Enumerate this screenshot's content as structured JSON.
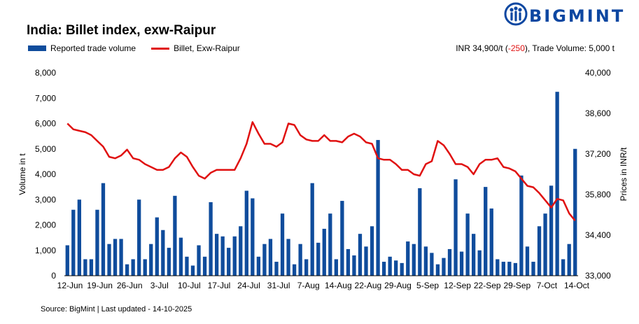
{
  "brand": {
    "name": "BIGMINT",
    "color": "#0d47a1"
  },
  "header": {
    "title": "India: Billet index, exw-Raipur",
    "info_prefix": "INR 34,900/t (",
    "info_change": "-250",
    "info_suffix": "), Trade Volume: 5,000 t"
  },
  "footer": {
    "source": "Source: BigMint | Last updated - 14-10-2025"
  },
  "chart_data": {
    "type": "bar",
    "y_left_label": "Volume in t",
    "y_right_label": "Prices in INR/t",
    "y_left_ticks": [
      "8,000",
      "7,000",
      "6,000",
      "5,000",
      "4,000",
      "3,000",
      "2,000",
      "1,000",
      "0"
    ],
    "y_right_ticks": [
      "40,000",
      "38,600",
      "37,200",
      "35,800",
      "34,400",
      "33,000"
    ],
    "ylim_left": [
      0,
      8000
    ],
    "ylim_right": [
      33000,
      40000
    ],
    "x_ticks": [
      "12-Jun",
      "19-Jun",
      "26-Jun",
      "3-Jul",
      "10-Jul",
      "17-Jul",
      "24-Jul",
      "31-Jul",
      "7-Aug",
      "14-Aug",
      "22-Aug",
      "29-Aug",
      "5-Sep",
      "12-Sep",
      "22-Sep",
      "29-Sep",
      "7-Oct",
      "14-Oct"
    ],
    "grid": false,
    "legend_position": "top-left",
    "series": [
      {
        "name": "Reported trade volume",
        "type": "bar",
        "axis": "left",
        "color": "#0f4c9c",
        "values": [
          1200,
          2600,
          3000,
          650,
          650,
          2600,
          3650,
          1250,
          1450,
          1450,
          450,
          650,
          3000,
          650,
          1250,
          2300,
          1800,
          1100,
          3150,
          1500,
          750,
          400,
          1200,
          750,
          2900,
          1650,
          1550,
          1100,
          1550,
          1950,
          3350,
          3050,
          750,
          1250,
          1450,
          550,
          2450,
          1450,
          450,
          1250,
          650,
          3650,
          1300,
          1850,
          2450,
          650,
          2950,
          1050,
          800,
          1650,
          1150,
          1950,
          5350,
          550,
          750,
          600,
          500,
          1350,
          1250,
          3450,
          1150,
          900,
          450,
          700,
          1050,
          3800,
          950,
          2450,
          1650,
          1000,
          3500,
          2650,
          650,
          550,
          550,
          500,
          3950,
          1150,
          550,
          1950,
          2450,
          3550,
          7250,
          650,
          1250,
          5000
        ]
      },
      {
        "name": "Billet, Exw-Raipur",
        "type": "line",
        "axis": "right",
        "color": "#e01010",
        "values": [
          38250,
          38050,
          38000,
          37950,
          37850,
          37650,
          37450,
          37100,
          37050,
          37150,
          37350,
          37050,
          37000,
          36850,
          36750,
          36650,
          36650,
          36750,
          37050,
          37250,
          37100,
          36750,
          36450,
          36350,
          36550,
          36650,
          36650,
          36650,
          36650,
          37050,
          37550,
          38300,
          37900,
          37550,
          37550,
          37450,
          37600,
          38250,
          38200,
          37850,
          37700,
          37650,
          37650,
          37850,
          37650,
          37650,
          37600,
          37800,
          37900,
          37800,
          37600,
          37550,
          37050,
          37000,
          37000,
          36850,
          36650,
          36650,
          36500,
          36450,
          36850,
          36950,
          37650,
          37500,
          37200,
          36850,
          36850,
          36750,
          36500,
          36850,
          37000,
          37000,
          37050,
          36750,
          36700,
          36600,
          36350,
          36100,
          36050,
          35850,
          35600,
          35350,
          35650,
          35600,
          35150,
          34900
        ]
      }
    ]
  }
}
